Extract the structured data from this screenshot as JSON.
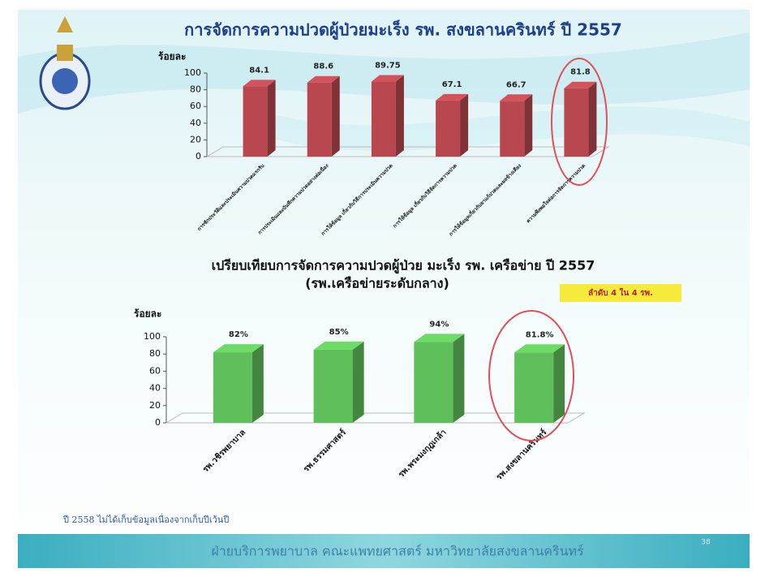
{
  "chart_data": [
    {
      "type": "bar",
      "title": "การจัดการความปวดผู้ป่วยมะเร็ง รพ. สงขลานครินทร์ ปี 2557",
      "y_label": "ร้อยละ",
      "categories": [
        "การซักประวัติและประเมินความปวดแรกรับ",
        "การประเมินและบันทึกความปวดอย่างต่อเนื่อง",
        "การให้ข้อมูล เกี่ยวกับวิธีการประเมินความปวด",
        "การให้ข้อมูล เกี่ยวกับวิธีจัดการความปวด",
        "การให้ข้อมูลเกี่ยวกับยาแก้ปวดและผลข้างเคียง",
        "ความพึงพอใจต่อการจัดการความปวด"
      ],
      "values": [
        84.1,
        88.6,
        89.75,
        67.1,
        66.7,
        81.8
      ],
      "color": "#b8474f",
      "ylim": [
        0,
        100
      ],
      "yticks": [
        0,
        20,
        40,
        60,
        80,
        100
      ]
    },
    {
      "type": "bar",
      "title": "เปรียบเทียบการจัดการความปวดผู้ป่วย มะเร็ง รพ. เครือข่าย ปี 2557",
      "subtitle": "(รพ.เครือข่ายระดับกลาง)",
      "y_label": "ร้อยละ",
      "categories": [
        "รพ.วชิรพยาบาล",
        "รพ.ธรรมศาสตร์",
        "รพ.พระมงกุฎเกล้า",
        "รพ.สงขลานครินทร์"
      ],
      "values": [
        82,
        85,
        94,
        81.8
      ],
      "value_labels": [
        "82%",
        "85%",
        "94%",
        "81.8%"
      ],
      "color": "#5fbf5a",
      "ylim": [
        0,
        100
      ],
      "yticks": [
        0,
        20,
        40,
        60,
        80,
        100
      ]
    }
  ],
  "slide": {
    "badge": "ลำดับ 4 ใน 4 รพ.",
    "note": "ปี 2558 ไม่ได้เก็บข้อมูลเนื่องจากเก็บปีเว้นปี",
    "footer": "ฝ่ายบริการพยาบาล คณะแพทยศาสตร์ มหาวิทยาลัยสงขลานครินทร์",
    "page_number": "38"
  }
}
